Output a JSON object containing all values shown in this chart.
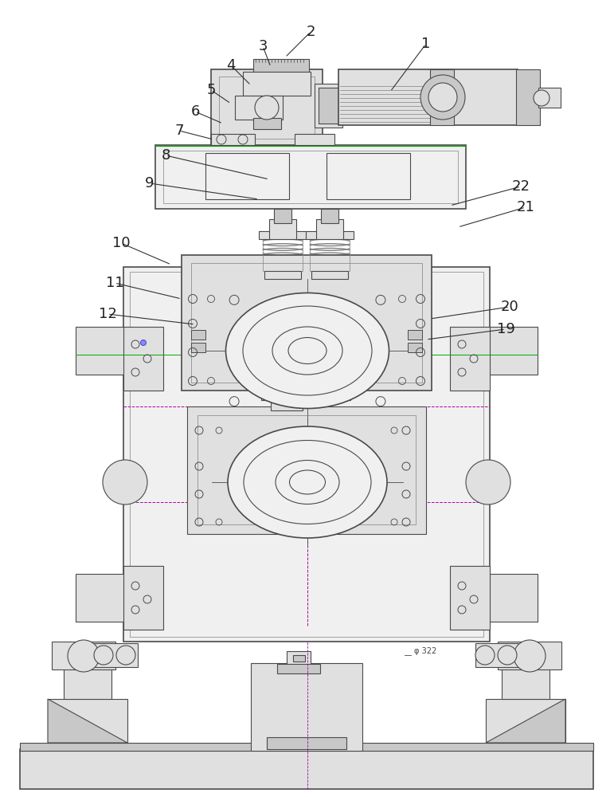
{
  "bg": "#ffffff",
  "lc_dark": "#4a4a4a",
  "lc_med": "#808080",
  "lc_light": "#aaaaaa",
  "fc_light": "#f0f0f0",
  "fc_med": "#e0e0e0",
  "fc_dark": "#c8c8c8",
  "green": "#00aa00",
  "purple": "#aa00aa",
  "figsize": [
    7.71,
    10.0
  ],
  "dpi": 100
}
